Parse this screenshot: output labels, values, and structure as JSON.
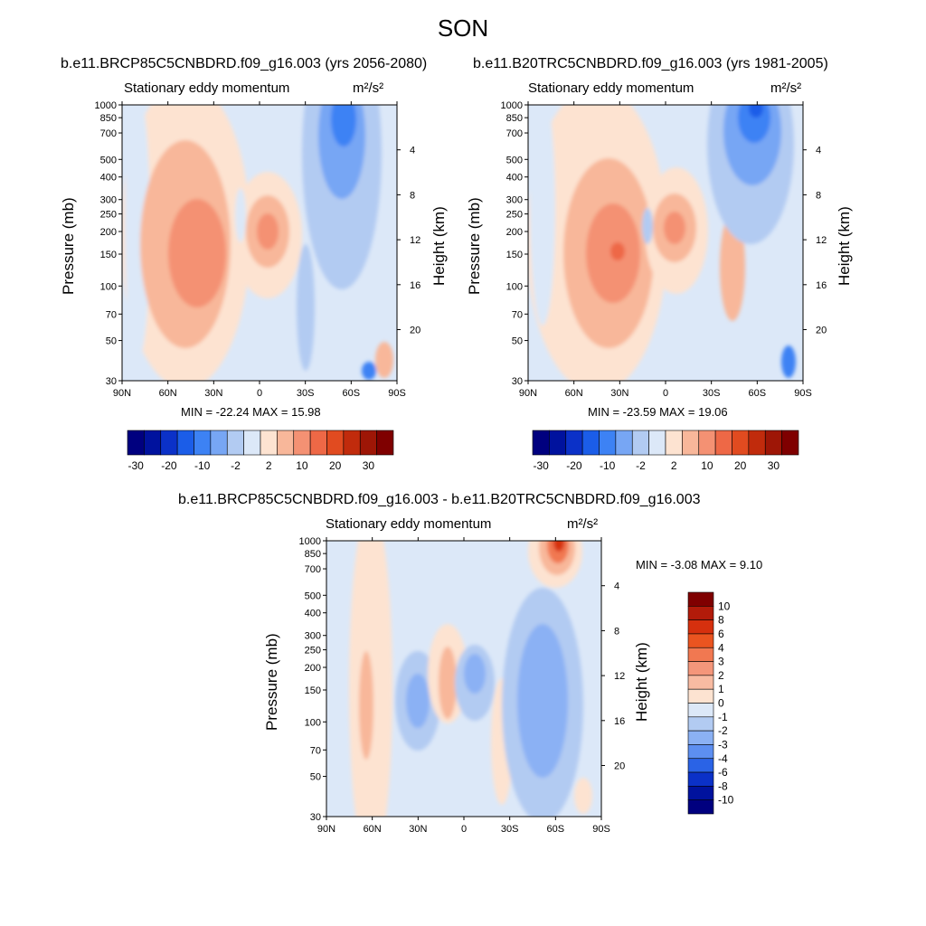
{
  "figure": {
    "title": "SON"
  },
  "panels": [
    {
      "id": "top-left",
      "title": "b.e11.BRCP85C5CNBDRD.f09_g16.003 (yrs 2056-2080)",
      "left_label": "Stationary eddy momentum",
      "units": "m²/s²",
      "minmax": "MIN = -22.24  MAX = 15.98",
      "ylabel_left": "Pressure (mb)",
      "ylabel_right": "Height (km)"
    },
    {
      "id": "top-right",
      "title": "b.e11.B20TRC5CNBDRD.f09_g16.003 (yrs 1981-2005)",
      "left_label": "Stationary eddy momentum",
      "units": "m²/s²",
      "minmax": "MIN = -23.59  MAX = 19.06",
      "ylabel_left": "Pressure (mb)",
      "ylabel_right": "Height (km)"
    },
    {
      "id": "bottom",
      "title": "b.e11.BRCP85C5CNBDRD.f09_g16.003 - b.e11.B20TRC5CNBDRD.f09_g16.003",
      "left_label": "Stationary eddy momentum",
      "units": "m²/s²",
      "minmax": "MIN =  -3.08  MAX =   9.10",
      "ylabel_left": "Pressure (mb)",
      "ylabel_right": "Height (km)"
    }
  ],
  "chart_data": [
    {
      "type": "heatmap",
      "title": "b.e11.BRCP85C5CNBDRD.f09_g16.003 (yrs 2056-2080)",
      "xlabel": "",
      "ylabel": "Pressure (mb)",
      "y2label": "Height (km)",
      "x_ticks": [
        "90N",
        "60N",
        "30N",
        "0",
        "30S",
        "60S",
        "90S"
      ],
      "x_range": [
        90,
        -90
      ],
      "y_ticks": [
        30,
        50,
        70,
        100,
        150,
        200,
        250,
        300,
        400,
        500,
        700,
        850,
        1000
      ],
      "y_range": [
        1000,
        30
      ],
      "y_scale": "log",
      "y2_ticks": [
        4,
        8,
        12,
        16,
        20
      ],
      "min": -22.24,
      "max": 15.98,
      "contour_levels": [
        -30,
        -25,
        -20,
        -15,
        -10,
        -5,
        -2,
        0,
        2,
        5,
        10,
        15,
        20,
        25,
        30
      ],
      "features": [
        {
          "lat": 35,
          "p": 200,
          "value": 15,
          "sign": "positive"
        },
        {
          "lat": 0,
          "p": 150,
          "value": 15,
          "sign": "positive"
        },
        {
          "lat": -55,
          "p": 35,
          "value": -20,
          "sign": "negative"
        }
      ]
    },
    {
      "type": "heatmap",
      "title": "b.e11.B20TRC5CNBDRD.f09_g16.003 (yrs 1981-2005)",
      "xlabel": "",
      "ylabel": "Pressure (mb)",
      "y2label": "Height (km)",
      "x_ticks": [
        "90N",
        "60N",
        "30N",
        "0",
        "30S",
        "60S",
        "90S"
      ],
      "x_range": [
        90,
        -90
      ],
      "y_ticks": [
        30,
        50,
        70,
        100,
        150,
        200,
        250,
        300,
        400,
        500,
        700,
        850,
        1000
      ],
      "y_range": [
        1000,
        30
      ],
      "y_scale": "log",
      "y2_ticks": [
        4,
        8,
        12,
        16,
        20
      ],
      "min": -23.59,
      "max": 19.06,
      "contour_levels": [
        -30,
        -25,
        -20,
        -15,
        -10,
        -5,
        -2,
        0,
        2,
        5,
        10,
        15,
        20,
        25,
        30
      ],
      "features": [
        {
          "lat": 35,
          "p": 200,
          "value": 15,
          "sign": "positive"
        },
        {
          "lat": 3,
          "p": 150,
          "value": 15,
          "sign": "positive"
        },
        {
          "lat": -60,
          "p": 35,
          "value": -20,
          "sign": "negative"
        }
      ]
    },
    {
      "type": "heatmap",
      "title": "b.e11.BRCP85C5CNBDRD.f09_g16.003 - b.e11.B20TRC5CNBDRD.f09_g16.003",
      "xlabel": "",
      "ylabel": "Pressure (mb)",
      "y2label": "Height (km)",
      "x_ticks": [
        "90N",
        "60N",
        "30N",
        "0",
        "30S",
        "60S",
        "90S"
      ],
      "x_range": [
        90,
        -90
      ],
      "y_ticks": [
        30,
        50,
        70,
        100,
        150,
        200,
        250,
        300,
        400,
        500,
        700,
        850,
        1000
      ],
      "y_range": [
        1000,
        30
      ],
      "y_scale": "log",
      "y2_ticks": [
        4,
        8,
        12,
        16,
        20
      ],
      "min": -3.08,
      "max": 9.1,
      "contour_levels": [
        -10,
        -8,
        -6,
        -4,
        -3,
        -2,
        -1,
        0,
        1,
        2,
        3,
        4,
        6,
        8,
        10
      ],
      "features": [
        {
          "lat": -62,
          "p": 32,
          "value": 8,
          "sign": "positive"
        },
        {
          "lat": -55,
          "p": 200,
          "value": -3,
          "sign": "negative"
        },
        {
          "lat": 30,
          "p": 200,
          "value": -3,
          "sign": "negative"
        },
        {
          "lat": 10,
          "p": 150,
          "value": 3,
          "sign": "positive"
        },
        {
          "lat": -5,
          "p": 150,
          "value": -3,
          "sign": "negative"
        }
      ]
    }
  ],
  "colorbars": {
    "top": {
      "labels": [
        "-30",
        "-20",
        "-10",
        "-2",
        "2",
        "10",
        "20",
        "30"
      ],
      "colors": [
        "#00007f",
        "#00129e",
        "#0b31c8",
        "#1b5de8",
        "#3d82f4",
        "#77a6f4",
        "#b2cbf2",
        "#dce8f8",
        "#fde3d1",
        "#f8b79a",
        "#f49173",
        "#ee6846",
        "#e14b20",
        "#c12b0c",
        "#9e1606",
        "#7f0000"
      ]
    },
    "bottom": {
      "labels": [
        "10",
        "8",
        "6",
        "4",
        "3",
        "2",
        "1",
        "0",
        "-1",
        "-2",
        "-3",
        "-4",
        "-6",
        "-8",
        "-10"
      ],
      "colors": [
        "#7f0000",
        "#b21b0a",
        "#d6300e",
        "#ea5420",
        "#f17851",
        "#f4967a",
        "#f8bba2",
        "#fde3d1",
        "#dce8f8",
        "#b2cbf2",
        "#8bb1f4",
        "#5d8ff1",
        "#2a63e6",
        "#0b31c8",
        "#00129e",
        "#00007f"
      ]
    }
  }
}
